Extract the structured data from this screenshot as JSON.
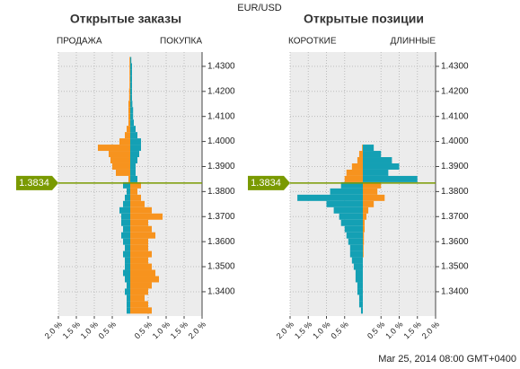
{
  "title": "EUR/USD",
  "footer": "Mar 25, 2014 08:00 GMT+0400",
  "chart_data": [
    {
      "type": "bar",
      "title": "Открытые заказы",
      "current_price": 1.3834,
      "ylim": [
        1.3303,
        1.4357
      ],
      "yticks": [
        {
          "value": 1.34,
          "label": "1.3400"
        },
        {
          "value": 1.35,
          "label": "1.3500"
        },
        {
          "value": 1.36,
          "label": "1.3600"
        },
        {
          "value": 1.37,
          "label": "1.3700"
        },
        {
          "value": 1.38,
          "label": "1.3800"
        },
        {
          "value": 1.39,
          "label": "1.3900"
        },
        {
          "value": 1.4,
          "label": "1.4000"
        },
        {
          "value": 1.41,
          "label": "1.4100"
        },
        {
          "value": 1.42,
          "label": "1.4200"
        },
        {
          "value": 1.43,
          "label": "1.4300"
        }
      ],
      "xlim": [
        -2,
        2
      ],
      "xticks": [
        {
          "value": -2,
          "label": "2.0 %"
        },
        {
          "value": -1.5,
          "label": "1.5 %"
        },
        {
          "value": -1,
          "label": "1.0 %"
        },
        {
          "value": -0.5,
          "label": "0.5 %"
        },
        {
          "value": 0.5,
          "label": "0.5 %"
        },
        {
          "value": 1,
          "label": "1.0 %"
        },
        {
          "value": 1.5,
          "label": "1.5 %"
        },
        {
          "value": 2,
          "label": "2.0 %"
        }
      ],
      "grid": true,
      "categories": [
        1.3325,
        1.335,
        1.3375,
        1.34,
        1.3425,
        1.345,
        1.3475,
        1.35,
        1.3525,
        1.355,
        1.3575,
        1.36,
        1.3625,
        1.365,
        1.3675,
        1.37,
        1.3725,
        1.375,
        1.3775,
        1.38,
        1.3825,
        1.385,
        1.3875,
        1.39,
        1.3925,
        1.395,
        1.3975,
        1.4,
        1.4025,
        1.405,
        1.4075,
        1.41,
        1.4125,
        1.415,
        1.4175,
        1.42,
        1.4225,
        1.425,
        1.4275,
        1.43,
        1.4325
      ],
      "series": [
        {
          "name": "ПРОДАЖА",
          "side": "left",
          "color_below": "#14a0b4",
          "color_above": "#f7931e",
          "values": [
            0.1,
            0.1,
            0.1,
            0.15,
            0.1,
            0.15,
            0.2,
            0.15,
            0.15,
            0.2,
            0.15,
            0.2,
            0.25,
            0.2,
            0.25,
            0.25,
            0.3,
            0.2,
            0.15,
            0.1,
            0.2,
            0.05,
            0.4,
            0.5,
            0.55,
            0.6,
            0.9,
            0.3,
            0.15,
            0.1,
            0.05,
            0.05,
            0.05,
            0.05,
            0.03,
            0.03,
            0.02,
            0.02,
            0.02,
            0.02,
            0.02
          ]
        },
        {
          "name": "ПОКУПКА",
          "side": "right",
          "color_below": "#f7931e",
          "color_above": "#14a0b4",
          "values": [
            0.6,
            0.5,
            0.4,
            0.5,
            0.6,
            0.8,
            0.7,
            0.6,
            0.5,
            0.6,
            0.5,
            0.5,
            0.7,
            0.6,
            0.5,
            0.9,
            0.6,
            0.4,
            0.3,
            0.2,
            0.3,
            0.2,
            0.15,
            0.15,
            0.2,
            0.25,
            0.3,
            0.3,
            0.2,
            0.15,
            0.1,
            0.08,
            0.08,
            0.06,
            0.05,
            0.05,
            0.05,
            0.05,
            0.05,
            0.05,
            0.03
          ]
        }
      ]
    },
    {
      "type": "bar",
      "title": "Открытые позиции",
      "current_price": 1.3834,
      "ylim": [
        1.3303,
        1.4357
      ],
      "yticks": [
        {
          "value": 1.34,
          "label": "1.3400"
        },
        {
          "value": 1.35,
          "label": "1.3500"
        },
        {
          "value": 1.36,
          "label": "1.3600"
        },
        {
          "value": 1.37,
          "label": "1.3700"
        },
        {
          "value": 1.38,
          "label": "1.3800"
        },
        {
          "value": 1.39,
          "label": "1.3900"
        },
        {
          "value": 1.4,
          "label": "1.4000"
        },
        {
          "value": 1.41,
          "label": "1.4100"
        },
        {
          "value": 1.42,
          "label": "1.4200"
        },
        {
          "value": 1.43,
          "label": "1.4300"
        }
      ],
      "xlim": [
        -2,
        2
      ],
      "xticks": [
        {
          "value": -2,
          "label": "2.0 %"
        },
        {
          "value": -1.5,
          "label": "1.5 %"
        },
        {
          "value": -1,
          "label": "1.0 %"
        },
        {
          "value": -0.5,
          "label": "0.5 %"
        },
        {
          "value": 0.5,
          "label": "0.5 %"
        },
        {
          "value": 1,
          "label": "1.0 %"
        },
        {
          "value": 1.5,
          "label": "1.5 %"
        },
        {
          "value": 2,
          "label": "2.0 %"
        }
      ],
      "grid": true,
      "categories": [
        1.3325,
        1.335,
        1.3375,
        1.34,
        1.3425,
        1.345,
        1.3475,
        1.35,
        1.3525,
        1.355,
        1.3575,
        1.36,
        1.3625,
        1.365,
        1.3675,
        1.37,
        1.3725,
        1.375,
        1.3775,
        1.38,
        1.3825,
        1.385,
        1.3875,
        1.39,
        1.3925,
        1.395,
        1.3975,
        1.4,
        1.4025,
        1.405,
        1.4075,
        1.41,
        1.4125,
        1.415,
        1.4175,
        1.42,
        1.4225,
        1.425,
        1.4275,
        1.43,
        1.4325
      ],
      "series": [
        {
          "name": "КОРОТКИЕ",
          "side": "left",
          "color_below": "#14a0b4",
          "color_above": "#f7931e",
          "values": [
            0.05,
            0.1,
            0.1,
            0.15,
            0.15,
            0.2,
            0.2,
            0.25,
            0.3,
            0.35,
            0.35,
            0.4,
            0.45,
            0.5,
            0.6,
            0.65,
            0.8,
            1.0,
            1.8,
            0.9,
            0.6,
            0.5,
            0.45,
            0.3,
            0.15,
            0.1,
            0.02,
            0,
            0,
            0,
            0,
            0,
            0,
            0,
            0,
            0,
            0,
            0,
            0,
            0,
            0
          ]
        },
        {
          "name": "ДЛИННЫЕ",
          "side": "right",
          "color_below": "#f7931e",
          "color_above": "#14a0b4",
          "values": [
            0,
            0,
            0,
            0,
            0,
            0,
            0,
            0,
            0,
            0.02,
            0.02,
            0.03,
            0.03,
            0.05,
            0.05,
            0.1,
            0.15,
            0.3,
            0.6,
            0.4,
            0.5,
            1.5,
            0.7,
            1.0,
            0.8,
            0.5,
            0.3,
            0,
            0,
            0,
            0,
            0,
            0,
            0,
            0,
            0,
            0,
            0,
            0,
            0,
            0
          ]
        }
      ]
    }
  ]
}
